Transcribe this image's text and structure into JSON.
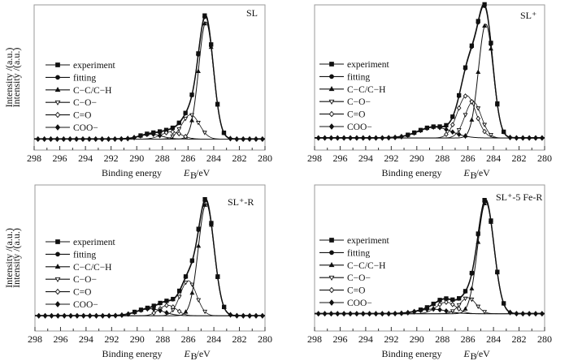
{
  "chart_data": [
    {
      "type": "line",
      "title": "SL",
      "xlabel": "Binding energy",
      "xlabel_symbol": "E",
      "xlabel_sub": "B",
      "xlabel_unit": "/eV",
      "ylabel": "Intensity /(a.u.)",
      "xlim": [
        298,
        280
      ],
      "xticks": [
        298,
        296,
        294,
        292,
        290,
        288,
        286,
        284,
        282,
        280
      ],
      "ylim": [
        -9,
        110
      ],
      "grid": false,
      "legend_position": "center-left",
      "series": [
        {
          "name": "experiment",
          "marker": "square-filled"
        },
        {
          "name": "fitting",
          "marker": "circle-filled"
        },
        {
          "name": "C−C/C−H",
          "marker": "triangle-up-filled"
        },
        {
          "name": "C−O−",
          "marker": "triangle-down-open"
        },
        {
          "name": "C=O",
          "marker": "diamond-open"
        },
        {
          "name": "COO−",
          "marker": "diamond-filled"
        }
      ],
      "components": [
        {
          "name": "C−C/C−H",
          "center": 284.6,
          "height": 96,
          "fwhm": 1.35
        },
        {
          "name": "C−O−",
          "center": 285.8,
          "height": 20,
          "fwhm": 1.6
        },
        {
          "name": "C=O",
          "center": 287.3,
          "height": 6,
          "fwhm": 1.8
        },
        {
          "name": "COO−",
          "center": 288.9,
          "height": 4,
          "fwhm": 2.0
        }
      ]
    },
    {
      "type": "line",
      "title": "SL⁺",
      "xlabel": "Binding energy",
      "xlabel_symbol": "E",
      "xlabel_sub": "B",
      "xlabel_unit": "/eV",
      "ylabel": "Intensity /(a.u.)",
      "xlim": [
        298,
        280
      ],
      "xticks": [
        298,
        296,
        294,
        292,
        290,
        288,
        286,
        284,
        282,
        280
      ],
      "ylim": [
        -10,
        110
      ],
      "grid": false,
      "legend_position": "center-left",
      "series": [
        {
          "name": "experiment",
          "marker": "square-filled"
        },
        {
          "name": "fitting",
          "marker": "circle-filled"
        },
        {
          "name": "C−C/C−H",
          "marker": "triangle-up-filled"
        },
        {
          "name": "C−O−",
          "marker": "triangle-down-open"
        },
        {
          "name": "C=O",
          "marker": "diamond-open"
        },
        {
          "name": "COO−",
          "marker": "diamond-filled"
        }
      ],
      "components": [
        {
          "name": "C−C/C−H",
          "center": 284.6,
          "height": 94,
          "fwhm": 1.35
        },
        {
          "name": "C−O−",
          "center": 285.6,
          "height": 30,
          "fwhm": 1.5
        },
        {
          "name": "C=O",
          "center": 286.1,
          "height": 35,
          "fwhm": 1.7
        },
        {
          "name": "COO−",
          "center": 288.6,
          "height": 9,
          "fwhm": 3.0
        }
      ]
    },
    {
      "type": "line",
      "title": "SL⁺-R",
      "xlabel": "Binding energy",
      "xlabel_symbol": "E",
      "xlabel_sub": "B",
      "xlabel_unit": "/eV",
      "ylabel": "Intensity /(a.u.)",
      "xlim": [
        298,
        280
      ],
      "xticks": [
        298,
        296,
        294,
        292,
        290,
        288,
        286,
        284,
        282,
        280
      ],
      "ylim": [
        -13,
        112
      ],
      "grid": false,
      "legend_position": "center-left",
      "series": [
        {
          "name": "experiment",
          "marker": "square-filled"
        },
        {
          "name": "fitting",
          "marker": "circle-filled"
        },
        {
          "name": "C−C/C−H",
          "marker": "triangle-up-filled"
        },
        {
          "name": "C−O−",
          "marker": "triangle-down-open"
        },
        {
          "name": "C=O",
          "marker": "diamond-open"
        },
        {
          "name": "COO−",
          "marker": "diamond-filled"
        }
      ],
      "components": [
        {
          "name": "C−C/C−H",
          "center": 284.6,
          "height": 96,
          "fwhm": 1.45
        },
        {
          "name": "C−O−",
          "center": 286.0,
          "height": 30,
          "fwhm": 1.5
        },
        {
          "name": "C=O",
          "center": 287.6,
          "height": 9,
          "fwhm": 1.6
        },
        {
          "name": "COO−",
          "center": 289.0,
          "height": 6,
          "fwhm": 2.4
        }
      ]
    },
    {
      "type": "line",
      "title": "SL⁺-5 Fe-R",
      "xlabel": "Binding energy",
      "xlabel_symbol": "E",
      "xlabel_sub": "B",
      "xlabel_unit": "/eV",
      "ylabel": "Intensity /(a.u.)",
      "xlim": [
        298,
        280
      ],
      "xticks": [
        298,
        296,
        294,
        292,
        290,
        288,
        286,
        284,
        282,
        280
      ],
      "ylim": [
        -15,
        112
      ],
      "grid": false,
      "legend_position": "center-left",
      "series": [
        {
          "name": "experiment",
          "marker": "square-filled"
        },
        {
          "name": "fitting",
          "marker": "circle-filled"
        },
        {
          "name": "C−C/C−H",
          "marker": "triangle-up-filled"
        },
        {
          "name": "C−O−",
          "marker": "triangle-down-open"
        },
        {
          "name": "C=O",
          "marker": "diamond-open"
        },
        {
          "name": "COO−",
          "marker": "diamond-filled"
        }
      ],
      "components": [
        {
          "name": "C−C/C−H",
          "center": 284.6,
          "height": 97,
          "fwhm": 1.5
        },
        {
          "name": "C−O−",
          "center": 286.0,
          "height": 14,
          "fwhm": 1.5
        },
        {
          "name": "C=O",
          "center": 287.7,
          "height": 10,
          "fwhm": 1.8
        },
        {
          "name": "COO−",
          "center": 288.8,
          "height": 4,
          "fwhm": 2.6
        }
      ]
    }
  ]
}
